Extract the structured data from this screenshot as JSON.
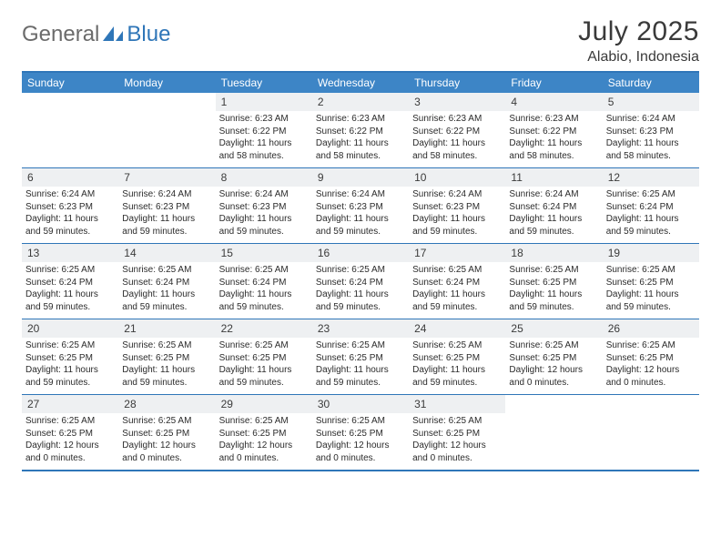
{
  "logo": {
    "part1": "General",
    "part2": "Blue"
  },
  "title": "July 2025",
  "location": "Alabio, Indonesia",
  "colors": {
    "header_bg": "#3d85c6",
    "border": "#2f76b8",
    "daynum_bg": "#eef0f2",
    "text": "#2b2b2b",
    "logo_gray": "#6b6b6b",
    "logo_blue": "#2f76b8"
  },
  "days_of_week": [
    "Sunday",
    "Monday",
    "Tuesday",
    "Wednesday",
    "Thursday",
    "Friday",
    "Saturday"
  ],
  "weeks": [
    [
      {
        "blank": true
      },
      {
        "blank": true
      },
      {
        "num": "1",
        "sunrise": "Sunrise: 6:23 AM",
        "sunset": "Sunset: 6:22 PM",
        "day1": "Daylight: 11 hours",
        "day2": "and 58 minutes."
      },
      {
        "num": "2",
        "sunrise": "Sunrise: 6:23 AM",
        "sunset": "Sunset: 6:22 PM",
        "day1": "Daylight: 11 hours",
        "day2": "and 58 minutes."
      },
      {
        "num": "3",
        "sunrise": "Sunrise: 6:23 AM",
        "sunset": "Sunset: 6:22 PM",
        "day1": "Daylight: 11 hours",
        "day2": "and 58 minutes."
      },
      {
        "num": "4",
        "sunrise": "Sunrise: 6:23 AM",
        "sunset": "Sunset: 6:22 PM",
        "day1": "Daylight: 11 hours",
        "day2": "and 58 minutes."
      },
      {
        "num": "5",
        "sunrise": "Sunrise: 6:24 AM",
        "sunset": "Sunset: 6:23 PM",
        "day1": "Daylight: 11 hours",
        "day2": "and 58 minutes."
      }
    ],
    [
      {
        "num": "6",
        "sunrise": "Sunrise: 6:24 AM",
        "sunset": "Sunset: 6:23 PM",
        "day1": "Daylight: 11 hours",
        "day2": "and 59 minutes."
      },
      {
        "num": "7",
        "sunrise": "Sunrise: 6:24 AM",
        "sunset": "Sunset: 6:23 PM",
        "day1": "Daylight: 11 hours",
        "day2": "and 59 minutes."
      },
      {
        "num": "8",
        "sunrise": "Sunrise: 6:24 AM",
        "sunset": "Sunset: 6:23 PM",
        "day1": "Daylight: 11 hours",
        "day2": "and 59 minutes."
      },
      {
        "num": "9",
        "sunrise": "Sunrise: 6:24 AM",
        "sunset": "Sunset: 6:23 PM",
        "day1": "Daylight: 11 hours",
        "day2": "and 59 minutes."
      },
      {
        "num": "10",
        "sunrise": "Sunrise: 6:24 AM",
        "sunset": "Sunset: 6:23 PM",
        "day1": "Daylight: 11 hours",
        "day2": "and 59 minutes."
      },
      {
        "num": "11",
        "sunrise": "Sunrise: 6:24 AM",
        "sunset": "Sunset: 6:24 PM",
        "day1": "Daylight: 11 hours",
        "day2": "and 59 minutes."
      },
      {
        "num": "12",
        "sunrise": "Sunrise: 6:25 AM",
        "sunset": "Sunset: 6:24 PM",
        "day1": "Daylight: 11 hours",
        "day2": "and 59 minutes."
      }
    ],
    [
      {
        "num": "13",
        "sunrise": "Sunrise: 6:25 AM",
        "sunset": "Sunset: 6:24 PM",
        "day1": "Daylight: 11 hours",
        "day2": "and 59 minutes."
      },
      {
        "num": "14",
        "sunrise": "Sunrise: 6:25 AM",
        "sunset": "Sunset: 6:24 PM",
        "day1": "Daylight: 11 hours",
        "day2": "and 59 minutes."
      },
      {
        "num": "15",
        "sunrise": "Sunrise: 6:25 AM",
        "sunset": "Sunset: 6:24 PM",
        "day1": "Daylight: 11 hours",
        "day2": "and 59 minutes."
      },
      {
        "num": "16",
        "sunrise": "Sunrise: 6:25 AM",
        "sunset": "Sunset: 6:24 PM",
        "day1": "Daylight: 11 hours",
        "day2": "and 59 minutes."
      },
      {
        "num": "17",
        "sunrise": "Sunrise: 6:25 AM",
        "sunset": "Sunset: 6:24 PM",
        "day1": "Daylight: 11 hours",
        "day2": "and 59 minutes."
      },
      {
        "num": "18",
        "sunrise": "Sunrise: 6:25 AM",
        "sunset": "Sunset: 6:25 PM",
        "day1": "Daylight: 11 hours",
        "day2": "and 59 minutes."
      },
      {
        "num": "19",
        "sunrise": "Sunrise: 6:25 AM",
        "sunset": "Sunset: 6:25 PM",
        "day1": "Daylight: 11 hours",
        "day2": "and 59 minutes."
      }
    ],
    [
      {
        "num": "20",
        "sunrise": "Sunrise: 6:25 AM",
        "sunset": "Sunset: 6:25 PM",
        "day1": "Daylight: 11 hours",
        "day2": "and 59 minutes."
      },
      {
        "num": "21",
        "sunrise": "Sunrise: 6:25 AM",
        "sunset": "Sunset: 6:25 PM",
        "day1": "Daylight: 11 hours",
        "day2": "and 59 minutes."
      },
      {
        "num": "22",
        "sunrise": "Sunrise: 6:25 AM",
        "sunset": "Sunset: 6:25 PM",
        "day1": "Daylight: 11 hours",
        "day2": "and 59 minutes."
      },
      {
        "num": "23",
        "sunrise": "Sunrise: 6:25 AM",
        "sunset": "Sunset: 6:25 PM",
        "day1": "Daylight: 11 hours",
        "day2": "and 59 minutes."
      },
      {
        "num": "24",
        "sunrise": "Sunrise: 6:25 AM",
        "sunset": "Sunset: 6:25 PM",
        "day1": "Daylight: 11 hours",
        "day2": "and 59 minutes."
      },
      {
        "num": "25",
        "sunrise": "Sunrise: 6:25 AM",
        "sunset": "Sunset: 6:25 PM",
        "day1": "Daylight: 12 hours",
        "day2": "and 0 minutes."
      },
      {
        "num": "26",
        "sunrise": "Sunrise: 6:25 AM",
        "sunset": "Sunset: 6:25 PM",
        "day1": "Daylight: 12 hours",
        "day2": "and 0 minutes."
      }
    ],
    [
      {
        "num": "27",
        "sunrise": "Sunrise: 6:25 AM",
        "sunset": "Sunset: 6:25 PM",
        "day1": "Daylight: 12 hours",
        "day2": "and 0 minutes."
      },
      {
        "num": "28",
        "sunrise": "Sunrise: 6:25 AM",
        "sunset": "Sunset: 6:25 PM",
        "day1": "Daylight: 12 hours",
        "day2": "and 0 minutes."
      },
      {
        "num": "29",
        "sunrise": "Sunrise: 6:25 AM",
        "sunset": "Sunset: 6:25 PM",
        "day1": "Daylight: 12 hours",
        "day2": "and 0 minutes."
      },
      {
        "num": "30",
        "sunrise": "Sunrise: 6:25 AM",
        "sunset": "Sunset: 6:25 PM",
        "day1": "Daylight: 12 hours",
        "day2": "and 0 minutes."
      },
      {
        "num": "31",
        "sunrise": "Sunrise: 6:25 AM",
        "sunset": "Sunset: 6:25 PM",
        "day1": "Daylight: 12 hours",
        "day2": "and 0 minutes."
      },
      {
        "blank": true
      },
      {
        "blank": true
      }
    ]
  ]
}
